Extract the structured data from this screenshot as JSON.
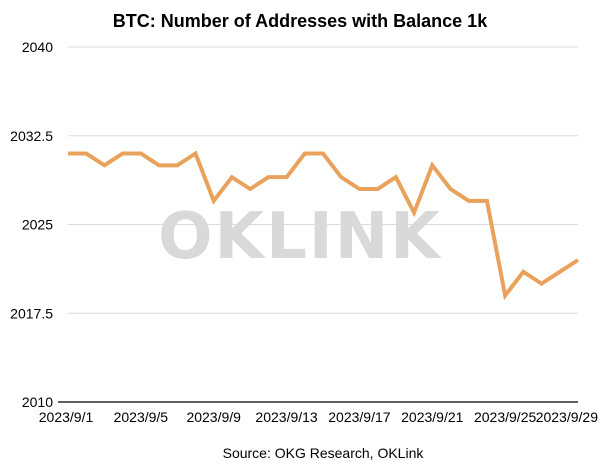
{
  "chart_data": {
    "type": "line",
    "title": "BTC: Number of Addresses with Balance 1k",
    "source": "Source: OKG Research, OKLink",
    "watermark": "OKLINK",
    "xlabel": "",
    "ylabel": "",
    "ylim": [
      2010,
      2040
    ],
    "yticks": [
      2010,
      2017.5,
      2025,
      2032.5,
      2040
    ],
    "ytick_labels": [
      "2010",
      "2017.5",
      "2025",
      "2032.5",
      "2040"
    ],
    "x": [
      "2023/9/1",
      "2023/9/2",
      "2023/9/3",
      "2023/9/4",
      "2023/9/5",
      "2023/9/6",
      "2023/9/7",
      "2023/9/8",
      "2023/9/9",
      "2023/9/10",
      "2023/9/11",
      "2023/9/12",
      "2023/9/13",
      "2023/9/14",
      "2023/9/15",
      "2023/9/16",
      "2023/9/17",
      "2023/9/18",
      "2023/9/19",
      "2023/9/20",
      "2023/9/21",
      "2023/9/22",
      "2023/9/23",
      "2023/9/24",
      "2023/9/25",
      "2023/9/26",
      "2023/9/27",
      "2023/9/28",
      "2023/9/29"
    ],
    "xtick_labels": [
      "2023/9/1",
      "2023/9/5",
      "2023/9/9",
      "2023/9/13",
      "2023/9/17",
      "2023/9/21",
      "2023/9/25",
      "2023/9/29"
    ],
    "xtick_indices": [
      0,
      4,
      8,
      12,
      16,
      20,
      24,
      28
    ],
    "series": [
      {
        "name": "",
        "color": "#e9a25c",
        "values": [
          2031,
          2031,
          2030,
          2031,
          2031,
          2030,
          2030,
          2031,
          2027,
          2029,
          2028,
          2029,
          2029,
          2031,
          2031,
          2029,
          2028,
          2028,
          2029,
          2026,
          2030,
          2028,
          2027,
          2027,
          2019,
          2021,
          2020,
          2021,
          2022
        ]
      }
    ],
    "grid": true,
    "legend": "none"
  }
}
